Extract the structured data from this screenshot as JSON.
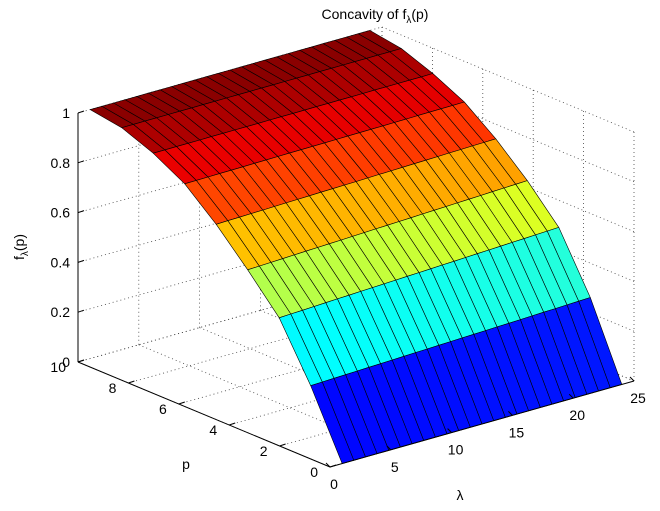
{
  "chart_data": {
    "type": "surface",
    "title": "Concavity of f",
    "title_subscript": "λ",
    "title_suffix": "(p)",
    "xlabel": "λ",
    "ylabel": "p",
    "zlabel": "f",
    "zlabel_subscript": "λ",
    "zlabel_suffix": "(p)",
    "xlim": [
      0,
      25
    ],
    "ylim": [
      0,
      10
    ],
    "zlim": [
      0,
      1
    ],
    "x_ticks": [
      "0",
      "5",
      "10",
      "15",
      "20",
      "25"
    ],
    "x_tick_values": [
      0,
      5,
      10,
      15,
      20,
      25
    ],
    "y_ticks": [
      "0",
      "2",
      "4",
      "6",
      "8",
      "10"
    ],
    "y_tick_values": [
      0,
      2,
      4,
      6,
      8,
      10
    ],
    "z_ticks": [
      "0",
      "0.2",
      "0.4",
      "0.6",
      "0.8",
      "1"
    ],
    "z_tick_values": [
      0,
      0.2,
      0.4,
      0.6,
      0.8,
      1
    ],
    "colormap": "jet",
    "grid": true,
    "lambda_range": [
      1,
      24
    ],
    "lambda_steps": 24,
    "p_values": [
      0,
      1.25,
      2.5,
      3.75,
      5,
      6.25,
      7.5,
      8.75,
      10
    ],
    "z_levels_by_p": [
      0,
      0.26,
      0.48,
      0.62,
      0.75,
      0.86,
      0.93,
      0.98,
      1.0
    ],
    "lambda_dependence": "surface height rises slightly with λ at low p"
  }
}
